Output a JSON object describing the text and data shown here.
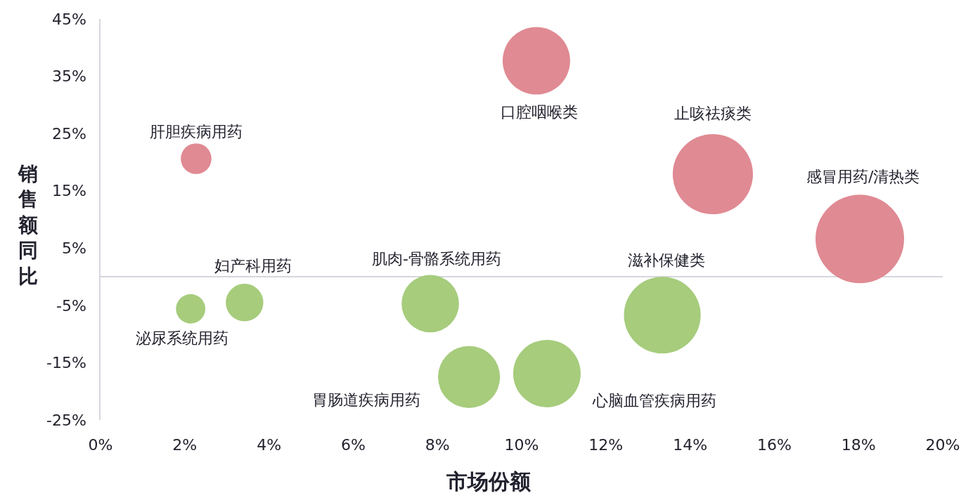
{
  "chart_data": {
    "type": "bubble",
    "xlabel": "市场份额",
    "ylabel": "销售额同比",
    "x": [
      2.27,
      10.35,
      14.54,
      18.03,
      2.14,
      3.42,
      7.83,
      8.75,
      10.6,
      13.34
    ],
    "values": [
      20.6,
      37.7,
      17.9,
      6.6,
      -5.6,
      -4.5,
      -4.7,
      -17.5,
      -16.9,
      -6.7
    ],
    "sizes": [
      0.12,
      0.58,
      0.82,
      1,
      0.11,
      0.18,
      0.42,
      0.49,
      0.58,
      0.75
    ],
    "value_labels": [
      "肝胆疾病用药",
      "口腔咽喉类",
      "止咳祛痰类",
      "感冒用药/清热类",
      "泌尿系统用药",
      "妇产科用药",
      "肌肉-骨骼系统用药",
      "胃肠道疾病用药",
      "心脑血管疾病用药",
      "滋补保健类"
    ],
    "colors": [
      "#e08a93",
      "#e08a93",
      "#e08a93",
      "#e08a93",
      "#a6cc7c",
      "#a6cc7c",
      "#a6cc7c",
      "#a6cc7c",
      "#a6cc7c",
      "#a6cc7c"
    ],
    "xlim": [
      0,
      20
    ],
    "ylim": [
      -25,
      45
    ],
    "xticks": [
      {
        "value": 0,
        "label": "0%"
      },
      {
        "value": 2,
        "label": "2%"
      },
      {
        "value": 4,
        "label": "4%"
      },
      {
        "value": 6,
        "label": "6%"
      },
      {
        "value": 8,
        "label": "8%"
      },
      {
        "value": 10,
        "label": "10%"
      },
      {
        "value": 12,
        "label": "12%"
      },
      {
        "value": 14,
        "label": "14%"
      },
      {
        "value": 16,
        "label": "16%"
      },
      {
        "value": 18,
        "label": "18%"
      },
      {
        "value": 20,
        "label": "20%"
      }
    ],
    "yticks": [
      {
        "value": -25,
        "label": "-25%"
      },
      {
        "value": -15,
        "label": "-15%"
      },
      {
        "value": -5,
        "label": "-5%"
      },
      {
        "value": 5,
        "label": "5%"
      },
      {
        "value": 15,
        "label": "15%"
      },
      {
        "value": 25,
        "label": "25%"
      },
      {
        "value": 35,
        "label": "35%"
      },
      {
        "value": 45,
        "label": "45%"
      }
    ],
    "grid": false
  }
}
